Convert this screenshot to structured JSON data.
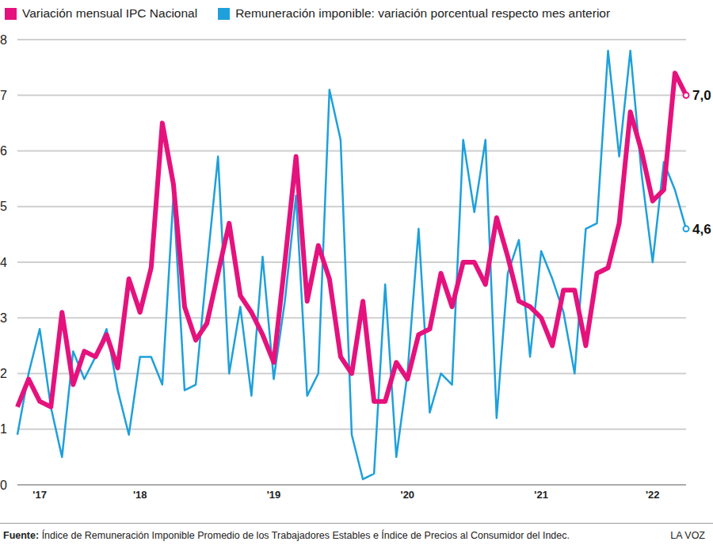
{
  "chart_data": {
    "type": "line",
    "categories": [
      null,
      null,
      "'17",
      null,
      null,
      null,
      null,
      null,
      null,
      null,
      null,
      "'18",
      null,
      null,
      null,
      null,
      null,
      null,
      null,
      null,
      null,
      null,
      null,
      "'19",
      null,
      null,
      null,
      null,
      null,
      null,
      null,
      null,
      null,
      null,
      null,
      "'20",
      null,
      null,
      null,
      null,
      null,
      null,
      null,
      null,
      null,
      null,
      null,
      "'21",
      null,
      null,
      null,
      null,
      null,
      null,
      null,
      null,
      null,
      "'22",
      null,
      null,
      null
    ],
    "series": [
      {
        "name": "Variación mensual IPC Nacional",
        "color": "#e5127d",
        "values": [
          1.4,
          1.9,
          1.5,
          1.4,
          3.1,
          1.8,
          2.4,
          2.3,
          2.7,
          2.1,
          3.7,
          3.1,
          3.9,
          6.5,
          5.4,
          3.2,
          2.6,
          2.9,
          3.8,
          4.7,
          3.4,
          3.1,
          2.7,
          2.2,
          4.0,
          5.9,
          3.3,
          4.3,
          3.7,
          2.3,
          2.0,
          3.3,
          1.5,
          1.5,
          2.2,
          1.9,
          2.7,
          2.8,
          3.8,
          3.2,
          4.0,
          4.0,
          3.6,
          4.8,
          4.1,
          3.3,
          3.2,
          3.0,
          2.5,
          3.5,
          3.5,
          2.5,
          3.8,
          3.9,
          4.7,
          6.7,
          6.0,
          5.1,
          5.3,
          7.4,
          7.0
        ],
        "value_labels": [
          null,
          null,
          null,
          null,
          null,
          null,
          null,
          null,
          null,
          null,
          null,
          null,
          null,
          null,
          null,
          null,
          null,
          null,
          null,
          null,
          null,
          null,
          null,
          null,
          null,
          null,
          null,
          null,
          null,
          null,
          null,
          null,
          null,
          null,
          null,
          null,
          null,
          null,
          null,
          null,
          null,
          null,
          null,
          null,
          null,
          null,
          null,
          null,
          null,
          null,
          null,
          null,
          null,
          null,
          null,
          null,
          null,
          null,
          null,
          null,
          "7,0"
        ]
      },
      {
        "name": "Remuneración imponible: variación porcentual respecto mes anterior",
        "color": "#1ea0db",
        "values": [
          0.9,
          2.0,
          2.8,
          1.4,
          0.5,
          2.4,
          1.9,
          2.3,
          2.8,
          1.7,
          0.9,
          2.3,
          2.3,
          1.8,
          5.2,
          1.7,
          1.8,
          3.9,
          5.9,
          2.0,
          3.2,
          1.6,
          4.1,
          1.9,
          3.3,
          5.2,
          1.6,
          2.0,
          7.1,
          6.2,
          0.9,
          0.1,
          0.2,
          3.6,
          0.5,
          2.0,
          4.6,
          1.3,
          2.0,
          1.8,
          6.2,
          4.9,
          6.2,
          1.2,
          3.8,
          4.4,
          2.3,
          4.2,
          3.7,
          3.1,
          2.0,
          4.6,
          4.7,
          7.8,
          5.9,
          7.8,
          5.6,
          4.0,
          5.8,
          5.3,
          4.6
        ],
        "value_labels": [
          null,
          null,
          null,
          null,
          null,
          null,
          null,
          null,
          null,
          null,
          null,
          null,
          null,
          null,
          null,
          null,
          null,
          null,
          null,
          null,
          null,
          null,
          null,
          null,
          null,
          null,
          null,
          null,
          null,
          null,
          null,
          null,
          null,
          null,
          null,
          null,
          null,
          null,
          null,
          null,
          null,
          null,
          null,
          null,
          null,
          null,
          null,
          null,
          null,
          null,
          null,
          null,
          null,
          null,
          null,
          null,
          null,
          null,
          null,
          null,
          "4,6"
        ]
      }
    ],
    "ylim": [
      0,
      8
    ],
    "yticks": [
      0,
      1,
      2,
      3,
      4,
      5,
      6,
      7,
      8
    ],
    "grid": true,
    "legend": "top",
    "source_label": "Fuente:",
    "source": "Índice de Remuneración Imponible Promedio de los Trabajadores Estables e Índice de Precios al Consumidor del Indec.",
    "credit": "LA VOZ"
  }
}
